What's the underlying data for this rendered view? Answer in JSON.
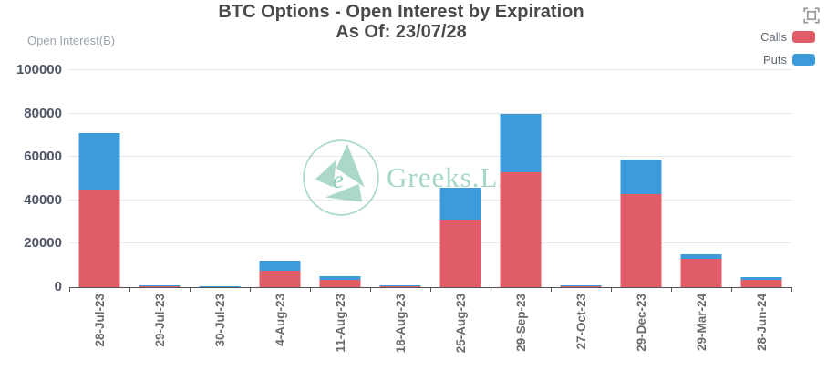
{
  "header": {
    "title": "BTC Options - Open Interest by Expiration",
    "subtitle": "As Of: 23/07/28"
  },
  "y_axis_name": "Open Interest(B)",
  "legend": {
    "items": [
      {
        "label": "Calls",
        "color": "#e05c68"
      },
      {
        "label": "Puts",
        "color": "#3d9bd9"
      }
    ]
  },
  "watermark": {
    "text": "Greeks.Live",
    "color": "#a6d6c8"
  },
  "toolbox": {
    "icon": "frame-icon",
    "color": "#9a9a9a"
  },
  "colors": {
    "calls": "#e05c68",
    "puts": "#3d9bd9",
    "grid": "#e8e8e8",
    "axis": "#555555",
    "title": "#4a4a4a"
  },
  "chart_data": {
    "type": "bar",
    "stacked": true,
    "title": "BTC Options - Open Interest by Expiration",
    "subtitle": "As Of: 23/07/28",
    "xlabel": "",
    "ylabel": "Open Interest(B)",
    "ylim": [
      0,
      100000
    ],
    "yticks": [
      0,
      20000,
      40000,
      60000,
      80000,
      100000
    ],
    "grid": true,
    "legend_position": "top-right",
    "categories": [
      "28-Jul-23",
      "29-Jul-23",
      "30-Jul-23",
      "4-Aug-23",
      "11-Aug-23",
      "18-Aug-23",
      "25-Aug-23",
      "29-Sep-23",
      "27-Oct-23",
      "29-Dec-23",
      "29-Mar-24",
      "28-Jun-24"
    ],
    "series": [
      {
        "name": "Calls",
        "color": "#e05c68",
        "values": [
          45000,
          500,
          300,
          7500,
          3500,
          800,
          31000,
          53000,
          500,
          43000,
          13000,
          3300
        ]
      },
      {
        "name": "Puts",
        "color": "#3d9bd9",
        "values": [
          26000,
          500,
          200,
          4500,
          1700,
          200,
          15000,
          27000,
          300,
          16000,
          2200,
          1400
        ]
      }
    ]
  }
}
